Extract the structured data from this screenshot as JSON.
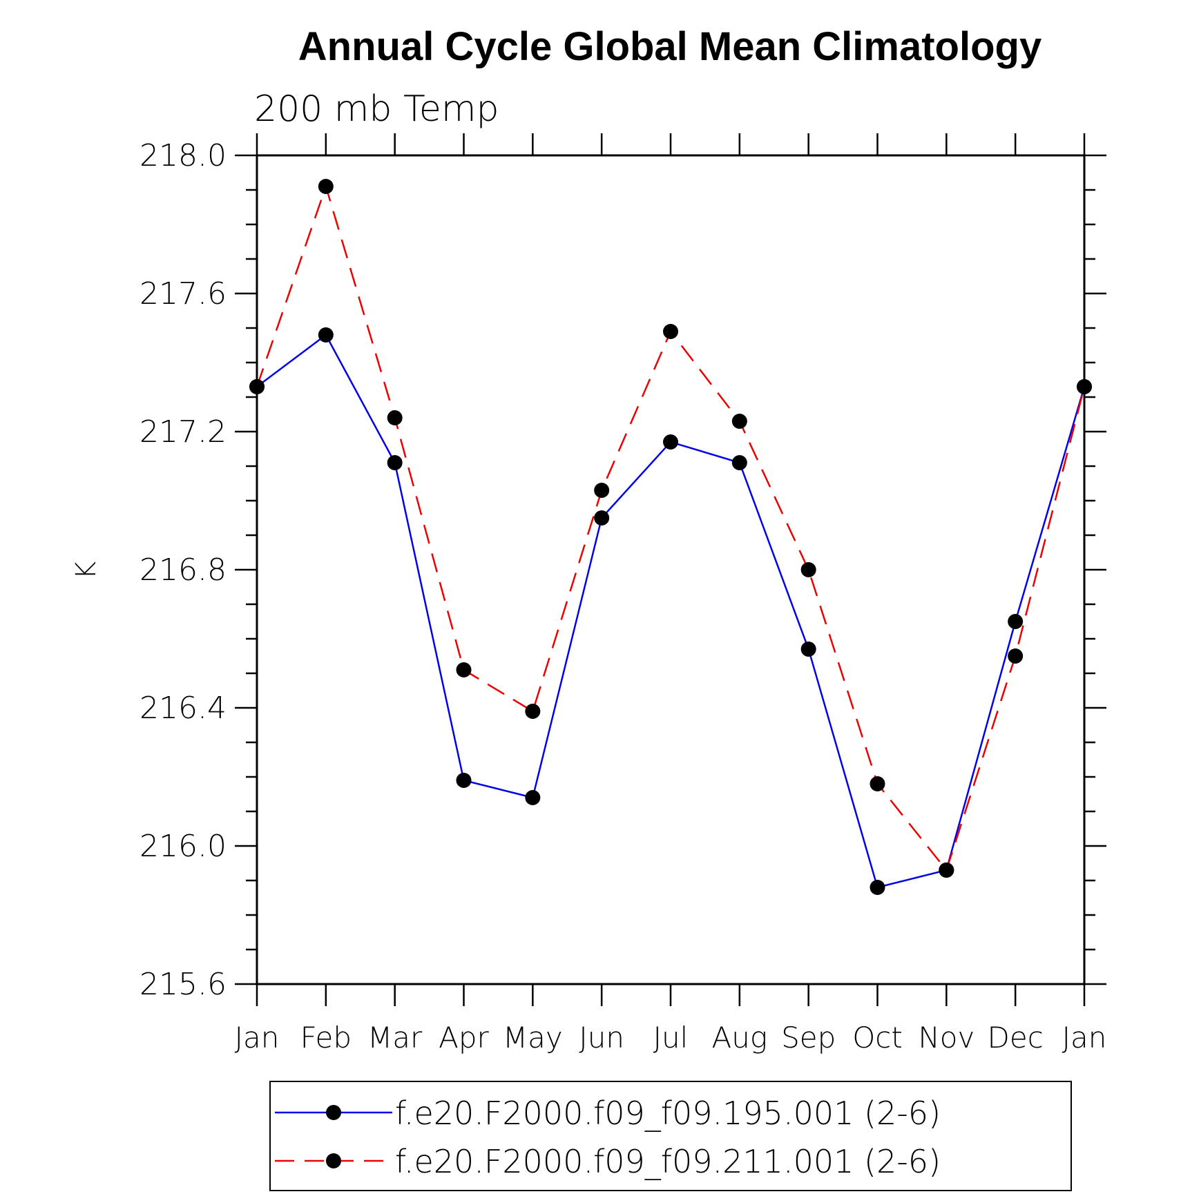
{
  "chart_data": {
    "type": "line",
    "title": "Annual Cycle Global Mean Climatology",
    "subtitle": "200 mb Temp",
    "ylabel": "K",
    "xlabel": "",
    "ylim": [
      215.6,
      218.0
    ],
    "yticks": [
      215.6,
      216.0,
      216.4,
      216.8,
      217.2,
      217.6,
      218.0
    ],
    "ytick_labels": [
      "215.6",
      "216.0",
      "216.4",
      "216.8",
      "217.2",
      "217.6",
      "218.0"
    ],
    "ytick_minor_step": 0.1,
    "categories": [
      "Jan",
      "Feb",
      "Mar",
      "Apr",
      "May",
      "Jun",
      "Jul",
      "Aug",
      "Sep",
      "Oct",
      "Nov",
      "Dec",
      "Jan"
    ],
    "series": [
      {
        "name": "f.e20.F2000.f09_f09.195.001 (2-6)",
        "color": "#0000ee",
        "dash": "solid",
        "marker": "filled-circle",
        "values": [
          217.33,
          217.48,
          217.11,
          216.19,
          216.14,
          216.95,
          217.17,
          217.11,
          216.57,
          215.88,
          215.93,
          216.65,
          217.33
        ]
      },
      {
        "name": "f.e20.F2000.f09_f09.211.001 (2-6)",
        "color": "#ee0000",
        "dash": "dashed",
        "marker": "filled-circle",
        "values": [
          217.33,
          217.91,
          217.24,
          216.51,
          216.39,
          217.03,
          217.49,
          217.23,
          216.8,
          216.18,
          215.93,
          216.55,
          217.33
        ]
      }
    ],
    "grid": false,
    "legend_position": "bottom"
  }
}
